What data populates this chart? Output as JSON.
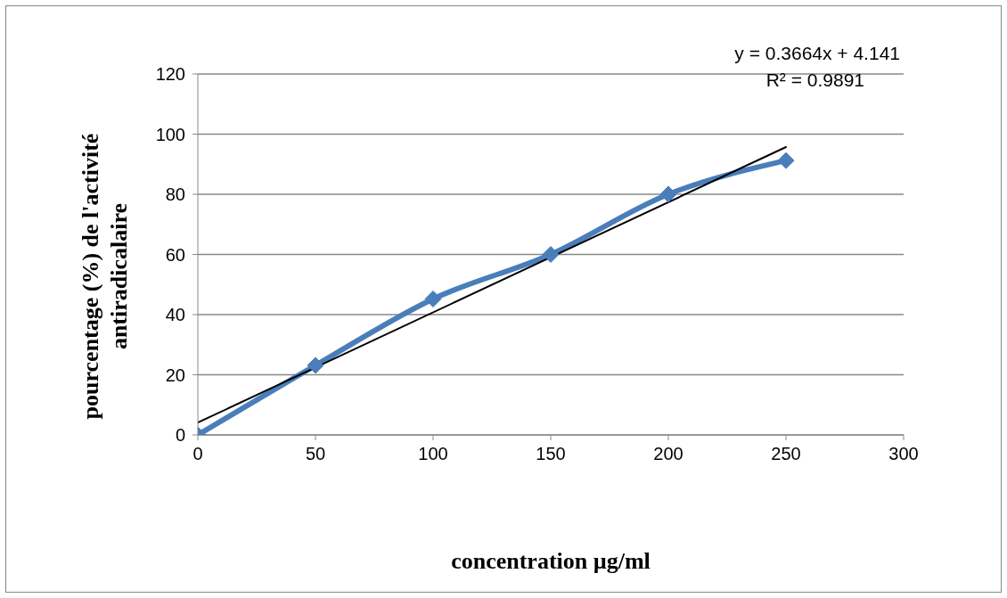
{
  "chart_data": {
    "type": "line",
    "xlabel": "concentration µg/ml",
    "ylabel": "pourcentage (%) de l'activité antiradicalaire",
    "annotations": [
      "y = 0.3664x + 4.141",
      "R² = 0.9891"
    ],
    "xlim": [
      0,
      300
    ],
    "xticks": [
      0,
      50,
      100,
      150,
      200,
      250,
      300
    ],
    "ylim": [
      0,
      120
    ],
    "yticks": [
      0,
      20,
      40,
      60,
      80,
      100,
      120
    ],
    "grid": "y",
    "marker": "diamond",
    "series": [
      {
        "color": "#4a7ebb",
        "x": [
          0,
          50,
          100,
          150,
          200,
          250
        ],
        "values": [
          0,
          23.1,
          45.2,
          60,
          80,
          91.2
        ]
      },
      {
        "type": "line",
        "color": "#000000",
        "marker": "none",
        "x": [
          0,
          250
        ],
        "values": [
          4.1,
          95.7
        ]
      }
    ]
  }
}
